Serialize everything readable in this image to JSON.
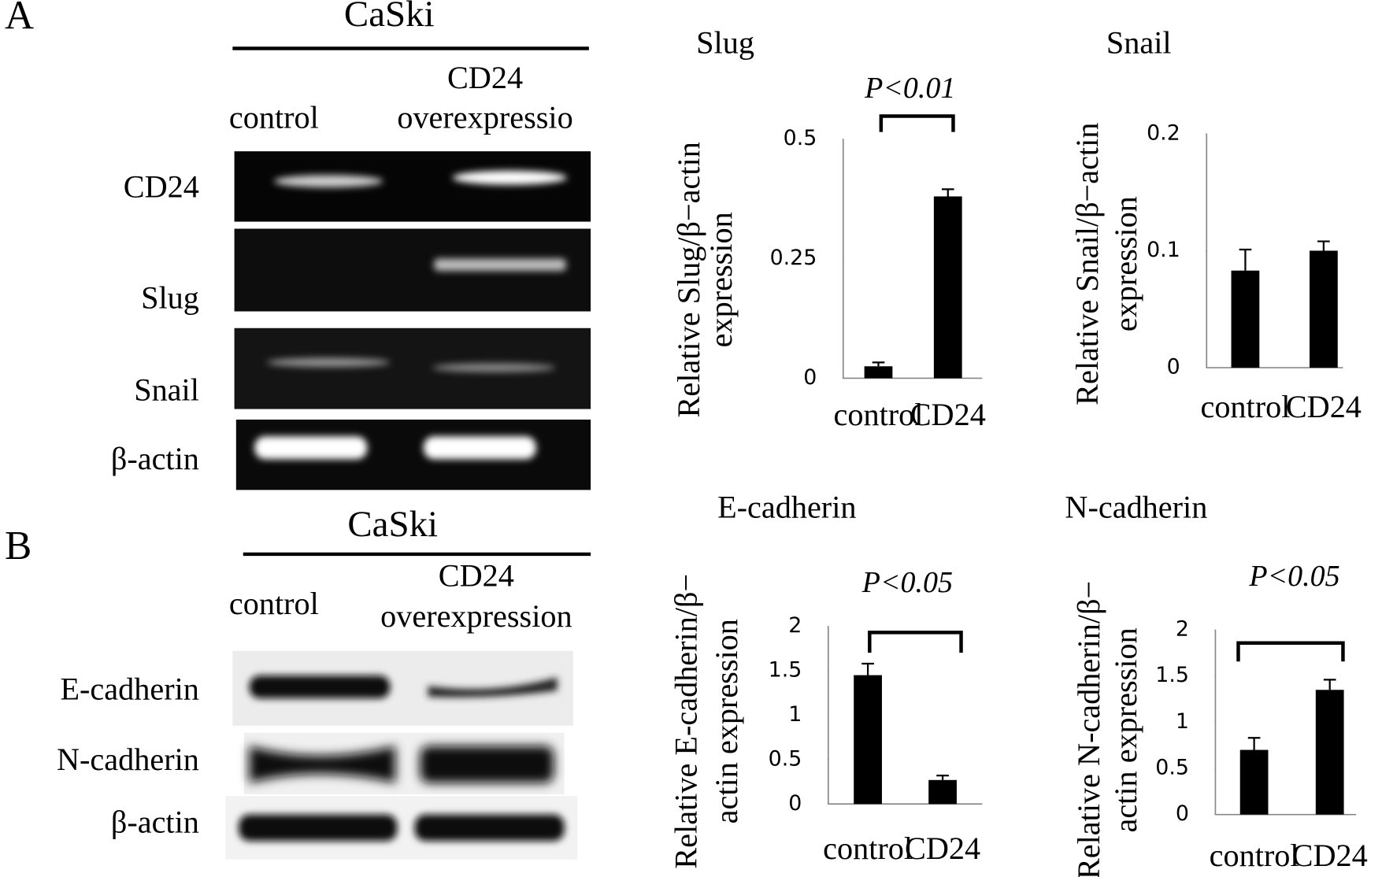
{
  "panel_a": {
    "label": "A",
    "cell_line": "CaSki",
    "lanes": [
      "control",
      "CD24",
      "overexpressio"
    ],
    "rows": [
      "CD24",
      "Slug",
      "Snail",
      "β-actin"
    ]
  },
  "panel_b": {
    "label": "B",
    "cell_line": "CaSki",
    "lanes": [
      "control",
      "CD24",
      "overexpression"
    ],
    "rows": [
      "E-cadherin",
      "N-cadherin",
      "β-actin"
    ]
  },
  "chart_data": [
    {
      "type": "bar",
      "title": "Slug",
      "y_label": [
        "Relative Slug/β−actin",
        "expression"
      ],
      "annotation": "P<0.01",
      "categories": [
        "control",
        "CD24"
      ],
      "series": [
        {
          "color": "#000000",
          "values": [
            0.025,
            0.38
          ],
          "errors": [
            0.008,
            0.015
          ]
        }
      ],
      "ylim": [
        0,
        0.5
      ],
      "yticks": [
        0,
        0.25,
        0.5
      ]
    },
    {
      "type": "bar",
      "title": "Snail",
      "y_label": [
        "Relative Snail/β−actin",
        "expression"
      ],
      "categories": [
        "control",
        "CD24"
      ],
      "series": [
        {
          "color": "#000000",
          "values": [
            0.083,
            0.1
          ],
          "errors": [
            0.018,
            0.008
          ]
        }
      ],
      "ylim": [
        0,
        0.2
      ],
      "yticks": [
        0,
        0.1,
        0.2
      ]
    },
    {
      "type": "bar",
      "title": "E-cadherin",
      "y_label": [
        "Relative E-cadherin/β−",
        "actin expression"
      ],
      "annotation": "P<0.05",
      "categories": [
        "control",
        "CD24"
      ],
      "series": [
        {
          "color": "#000000",
          "values": [
            1.45,
            0.27
          ],
          "errors": [
            0.13,
            0.05
          ]
        }
      ],
      "ylim": [
        0,
        2
      ],
      "yticks": [
        0,
        0.5,
        1,
        1.5,
        2
      ]
    },
    {
      "type": "bar",
      "title": "N-cadherin",
      "y_label": [
        "Relative N-cadherin/β−",
        "actin expression"
      ],
      "annotation": "P<0.05",
      "categories": [
        "control",
        "CD24"
      ],
      "series": [
        {
          "color": "#000000",
          "values": [
            0.7,
            1.35
          ],
          "errors": [
            0.13,
            0.11
          ]
        }
      ],
      "ylim": [
        0,
        2
      ],
      "yticks": [
        0,
        0.5,
        1,
        1.5,
        2
      ]
    }
  ]
}
